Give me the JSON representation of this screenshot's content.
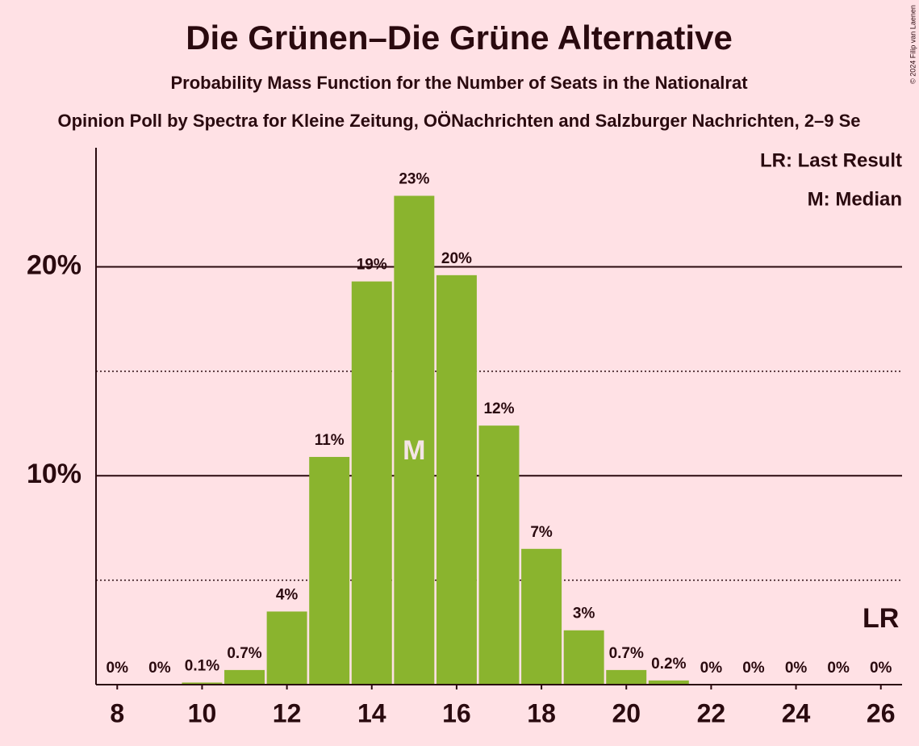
{
  "chart_data": {
    "type": "bar",
    "title": "Die Grünen–Die Grüne Alternative",
    "subtitle": "Probability Mass Function for the Number of Seats in the Nationalrat",
    "caption": "Opinion Poll by Spectra for Kleine Zeitung, OÖNachrichten and Salzburger Nachrichten, 2–9 Se",
    "copyright": "© 2024 Filip van Laenen",
    "x": [
      8,
      9,
      10,
      11,
      12,
      13,
      14,
      15,
      16,
      17,
      18,
      19,
      20,
      21,
      22,
      23,
      24,
      25,
      26
    ],
    "values": [
      0,
      0,
      0.1,
      0.7,
      3.5,
      10.9,
      19.3,
      23.4,
      19.6,
      12.4,
      6.5,
      2.6,
      0.7,
      0.2,
      0,
      0,
      0,
      0,
      0
    ],
    "value_labels": [
      "0%",
      "0%",
      "0.1%",
      "0.7%",
      "4%",
      "11%",
      "19%",
      "23%",
      "20%",
      "12%",
      "7%",
      "3%",
      "0.7%",
      "0.2%",
      "0%",
      "0%",
      "0%",
      "0%",
      "0%"
    ],
    "color": "#8ab42e",
    "xlim": [
      7.5,
      26.5
    ],
    "xticks": [
      8,
      10,
      12,
      14,
      16,
      18,
      20,
      22,
      24,
      26
    ],
    "ylim": [
      0,
      25.7
    ],
    "yticks": [
      {
        "value": 10,
        "label": "10%"
      },
      {
        "value": 20,
        "label": "20%"
      }
    ],
    "minor_grid": [
      5,
      15
    ],
    "grid": true,
    "legend": [
      "LR: Last Result",
      "M: Median"
    ],
    "median": {
      "x": 15,
      "label": "M"
    },
    "last_result": {
      "x": 26,
      "label": "LR"
    }
  }
}
